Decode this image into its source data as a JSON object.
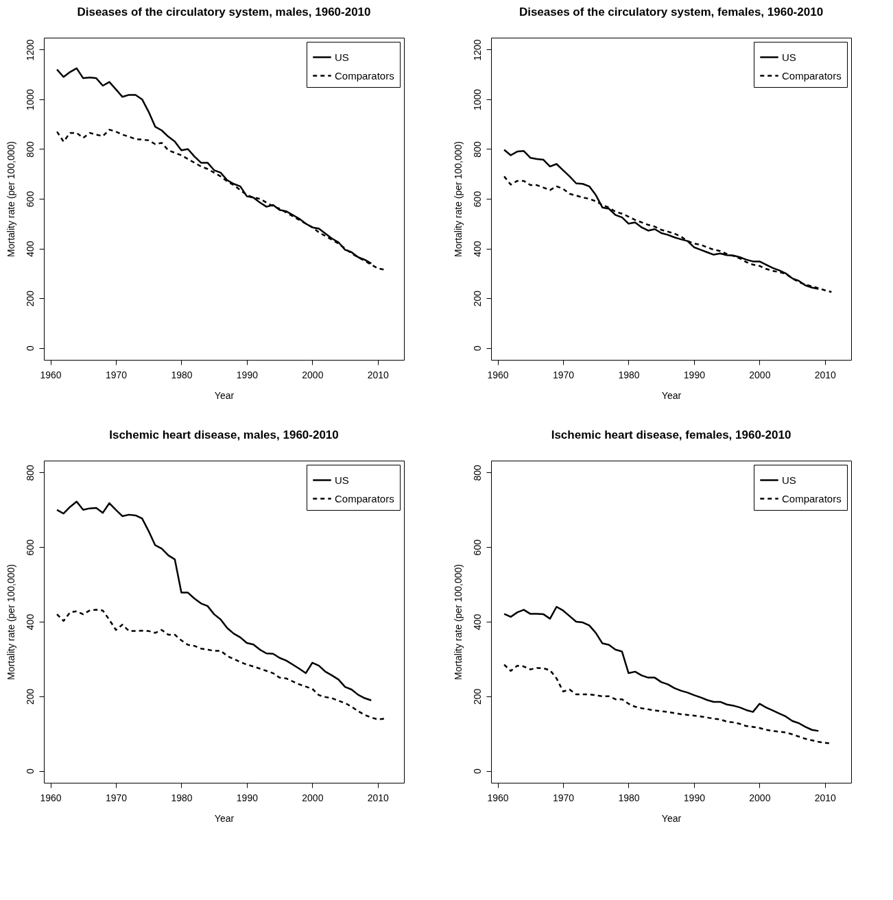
{
  "chart_data": [
    {
      "type": "line",
      "title": "Diseases of the circulatory system, males, 1960-2010",
      "xlabel": "Year",
      "ylabel": "Mortality rate (per 100,000)",
      "xlim": [
        1959,
        2014
      ],
      "xticks": [
        1960,
        1970,
        1980,
        1990,
        2000,
        2010
      ],
      "ylim": [
        -48,
        1248
      ],
      "yticks": [
        0,
        200,
        400,
        600,
        800,
        1000,
        1200
      ],
      "grid": false,
      "legend": "top right",
      "series": [
        {
          "name": "US",
          "color": "#000000",
          "line_style": "solid",
          "x": [
            1961,
            1962,
            1963,
            1964,
            1965,
            1966,
            1967,
            1968,
            1969,
            1970,
            1971,
            1972,
            1973,
            1974,
            1975,
            1976,
            1977,
            1978,
            1979,
            1980,
            1981,
            1982,
            1983,
            1984,
            1985,
            1986,
            1987,
            1988,
            1989,
            1990,
            1991,
            1992,
            1993,
            1994,
            1995,
            1996,
            1997,
            1998,
            1999,
            2000,
            2001,
            2002,
            2003,
            2004,
            2005,
            2006,
            2007,
            2008,
            2009
          ],
          "values": [
            1120,
            1090,
            1110,
            1125,
            1085,
            1088,
            1085,
            1055,
            1070,
            1040,
            1010,
            1018,
            1018,
            1000,
            950,
            890,
            875,
            850,
            830,
            795,
            800,
            770,
            745,
            745,
            715,
            705,
            675,
            660,
            650,
            610,
            605,
            585,
            568,
            575,
            555,
            550,
            535,
            520,
            500,
            485,
            480,
            460,
            440,
            425,
            395,
            385,
            365,
            355,
            340
          ]
        },
        {
          "name": "Comparators",
          "color": "#000000",
          "line_style": "dashed",
          "x": [
            1961,
            1962,
            1963,
            1964,
            1965,
            1966,
            1967,
            1968,
            1969,
            1970,
            1971,
            1972,
            1973,
            1974,
            1975,
            1976,
            1977,
            1978,
            1979,
            1980,
            1981,
            1982,
            1983,
            1984,
            1985,
            1986,
            1987,
            1988,
            1989,
            1990,
            1991,
            1992,
            1993,
            1994,
            1995,
            1996,
            1997,
            1998,
            1999,
            2000,
            2001,
            2002,
            2003,
            2004,
            2005,
            2006,
            2007,
            2008,
            2009,
            2010,
            2011
          ],
          "values": [
            870,
            830,
            865,
            865,
            845,
            865,
            858,
            852,
            878,
            870,
            858,
            850,
            840,
            838,
            835,
            820,
            825,
            795,
            785,
            775,
            760,
            745,
            730,
            720,
            705,
            690,
            670,
            655,
            635,
            615,
            605,
            600,
            585,
            570,
            560,
            545,
            530,
            515,
            500,
            485,
            465,
            450,
            435,
            420,
            400,
            380,
            365,
            350,
            335,
            320,
            315
          ]
        }
      ]
    },
    {
      "type": "line",
      "title": "Diseases of the circulatory system, females, 1960-2010",
      "xlabel": "Year",
      "ylabel": "Mortality rate (per 100,000)",
      "xlim": [
        1959,
        2014
      ],
      "xticks": [
        1960,
        1970,
        1980,
        1990,
        2000,
        2010
      ],
      "ylim": [
        -48,
        1248
      ],
      "yticks": [
        0,
        200,
        400,
        600,
        800,
        1000,
        1200
      ],
      "grid": false,
      "legend": "top right",
      "series": [
        {
          "name": "US",
          "color": "#000000",
          "line_style": "solid",
          "x": [
            1961,
            1962,
            1963,
            1964,
            1965,
            1966,
            1967,
            1968,
            1969,
            1970,
            1971,
            1972,
            1973,
            1974,
            1975,
            1976,
            1977,
            1978,
            1979,
            1980,
            1981,
            1982,
            1983,
            1984,
            1985,
            1986,
            1987,
            1988,
            1989,
            1990,
            1991,
            1992,
            1993,
            1994,
            1995,
            1996,
            1997,
            1998,
            1999,
            2000,
            2001,
            2002,
            2003,
            2004,
            2005,
            2006,
            2007,
            2008,
            2009
          ],
          "values": [
            797,
            775,
            790,
            792,
            765,
            760,
            757,
            730,
            740,
            715,
            690,
            662,
            660,
            650,
            615,
            565,
            560,
            535,
            525,
            500,
            505,
            485,
            472,
            478,
            462,
            455,
            445,
            437,
            430,
            405,
            395,
            385,
            375,
            380,
            373,
            372,
            365,
            355,
            348,
            348,
            335,
            322,
            312,
            300,
            280,
            270,
            252,
            243,
            237
          ]
        },
        {
          "name": "Comparators",
          "color": "#000000",
          "line_style": "dashed",
          "x": [
            1961,
            1962,
            1963,
            1964,
            1965,
            1966,
            1967,
            1968,
            1969,
            1970,
            1971,
            1972,
            1973,
            1974,
            1975,
            1976,
            1977,
            1978,
            1979,
            1980,
            1981,
            1982,
            1983,
            1984,
            1985,
            1986,
            1987,
            1988,
            1989,
            1990,
            1991,
            1992,
            1993,
            1994,
            1995,
            1996,
            1997,
            1998,
            1999,
            2000,
            2001,
            2002,
            2003,
            2004,
            2005,
            2006,
            2007,
            2008,
            2009,
            2010,
            2011
          ],
          "values": [
            690,
            657,
            672,
            672,
            655,
            655,
            645,
            635,
            650,
            640,
            620,
            613,
            605,
            600,
            590,
            575,
            565,
            548,
            540,
            528,
            515,
            505,
            495,
            488,
            475,
            468,
            460,
            448,
            430,
            420,
            415,
            405,
            395,
            390,
            378,
            370,
            360,
            345,
            335,
            330,
            318,
            310,
            305,
            298,
            280,
            265,
            255,
            248,
            240,
            232,
            225
          ]
        }
      ]
    },
    {
      "type": "line",
      "title": "Ischemic heart disease, males, 1960-2010",
      "xlabel": "Year",
      "ylabel": "Mortality rate (per 100,000)",
      "xlim": [
        1959,
        2014
      ],
      "xticks": [
        1960,
        1970,
        1980,
        1990,
        2000,
        2010
      ],
      "ylim": [
        -32,
        832
      ],
      "yticks": [
        0,
        200,
        400,
        600,
        800
      ],
      "grid": false,
      "legend": "top right",
      "series": [
        {
          "name": "US",
          "color": "#000000",
          "line_style": "solid",
          "x": [
            1961,
            1962,
            1963,
            1964,
            1965,
            1966,
            1967,
            1968,
            1969,
            1970,
            1971,
            1972,
            1973,
            1974,
            1975,
            1976,
            1977,
            1978,
            1979,
            1980,
            1981,
            1982,
            1983,
            1984,
            1985,
            1986,
            1987,
            1988,
            1989,
            1990,
            1991,
            1992,
            1993,
            1994,
            1995,
            1996,
            1997,
            1998,
            1999,
            2000,
            2001,
            2002,
            2003,
            2004,
            2005,
            2006,
            2007,
            2008,
            2009
          ],
          "values": [
            700,
            690,
            708,
            722,
            700,
            704,
            705,
            692,
            718,
            700,
            683,
            687,
            685,
            677,
            643,
            605,
            596,
            578,
            567,
            478,
            478,
            462,
            449,
            442,
            420,
            406,
            383,
            368,
            358,
            343,
            339,
            325,
            315,
            314,
            303,
            296,
            285,
            274,
            262,
            290,
            282,
            266,
            256,
            245,
            225,
            218,
            204,
            195,
            189
          ]
        },
        {
          "name": "Comparators",
          "color": "#000000",
          "line_style": "dashed",
          "x": [
            1961,
            1962,
            1963,
            1964,
            1965,
            1966,
            1967,
            1968,
            1969,
            1970,
            1971,
            1972,
            1973,
            1974,
            1975,
            1976,
            1977,
            1978,
            1979,
            1980,
            1981,
            1982,
            1983,
            1984,
            1985,
            1986,
            1987,
            1988,
            1989,
            1990,
            1991,
            1992,
            1993,
            1994,
            1995,
            1996,
            1997,
            1998,
            1999,
            2000,
            2001,
            2002,
            2003,
            2004,
            2005,
            2006,
            2007,
            2008,
            2009,
            2010,
            2011
          ],
          "values": [
            420,
            402,
            425,
            428,
            420,
            430,
            432,
            430,
            405,
            378,
            392,
            375,
            375,
            376,
            375,
            370,
            378,
            365,
            365,
            350,
            338,
            335,
            328,
            325,
            322,
            322,
            308,
            300,
            292,
            285,
            280,
            274,
            268,
            262,
            250,
            248,
            240,
            232,
            226,
            220,
            203,
            198,
            195,
            188,
            182,
            172,
            160,
            150,
            143,
            138,
            140
          ]
        }
      ]
    },
    {
      "type": "line",
      "title": "Ischemic heart disease, females, 1960-2010",
      "xlabel": "Year",
      "ylabel": "Mortality rate (per 100,000)",
      "xlim": [
        1959,
        2014
      ],
      "xticks": [
        1960,
        1970,
        1980,
        1990,
        2000,
        2010
      ],
      "ylim": [
        -32,
        832
      ],
      "yticks": [
        0,
        200,
        400,
        600,
        800
      ],
      "grid": false,
      "legend": "top right",
      "series": [
        {
          "name": "US",
          "color": "#000000",
          "line_style": "solid",
          "x": [
            1961,
            1962,
            1963,
            1964,
            1965,
            1966,
            1967,
            1968,
            1969,
            1970,
            1971,
            1972,
            1973,
            1974,
            1975,
            1976,
            1977,
            1978,
            1979,
            1980,
            1981,
            1982,
            1983,
            1984,
            1985,
            1986,
            1987,
            1988,
            1989,
            1990,
            1991,
            1992,
            1993,
            1994,
            1995,
            1996,
            1997,
            1998,
            1999,
            2000,
            2001,
            2002,
            2003,
            2004,
            2005,
            2006,
            2007,
            2008,
            2009
          ],
          "values": [
            421,
            413,
            425,
            432,
            421,
            421,
            420,
            408,
            440,
            430,
            415,
            400,
            398,
            390,
            370,
            342,
            338,
            325,
            320,
            262,
            266,
            256,
            250,
            250,
            238,
            232,
            222,
            215,
            210,
            203,
            197,
            190,
            185,
            185,
            178,
            175,
            170,
            163,
            158,
            180,
            170,
            162,
            154,
            146,
            134,
            128,
            118,
            110,
            107
          ]
        },
        {
          "name": "Comparators",
          "color": "#000000",
          "line_style": "dashed",
          "x": [
            1961,
            1962,
            1963,
            1964,
            1965,
            1966,
            1967,
            1968,
            1969,
            1970,
            1971,
            1972,
            1973,
            1974,
            1975,
            1976,
            1977,
            1978,
            1979,
            1980,
            1981,
            1982,
            1983,
            1984,
            1985,
            1986,
            1987,
            1988,
            1989,
            1990,
            1991,
            1992,
            1993,
            1994,
            1995,
            1996,
            1997,
            1998,
            1999,
            2000,
            2001,
            2002,
            2003,
            2004,
            2005,
            2006,
            2007,
            2008,
            2009,
            2010,
            2011
          ],
          "values": [
            285,
            268,
            282,
            280,
            272,
            276,
            275,
            270,
            248,
            213,
            218,
            205,
            205,
            205,
            203,
            200,
            200,
            192,
            192,
            180,
            172,
            168,
            165,
            162,
            160,
            158,
            155,
            152,
            150,
            148,
            146,
            143,
            140,
            138,
            132,
            130,
            126,
            120,
            118,
            115,
            110,
            107,
            105,
            103,
            98,
            92,
            86,
            82,
            78,
            75,
            74
          ]
        }
      ]
    }
  ]
}
